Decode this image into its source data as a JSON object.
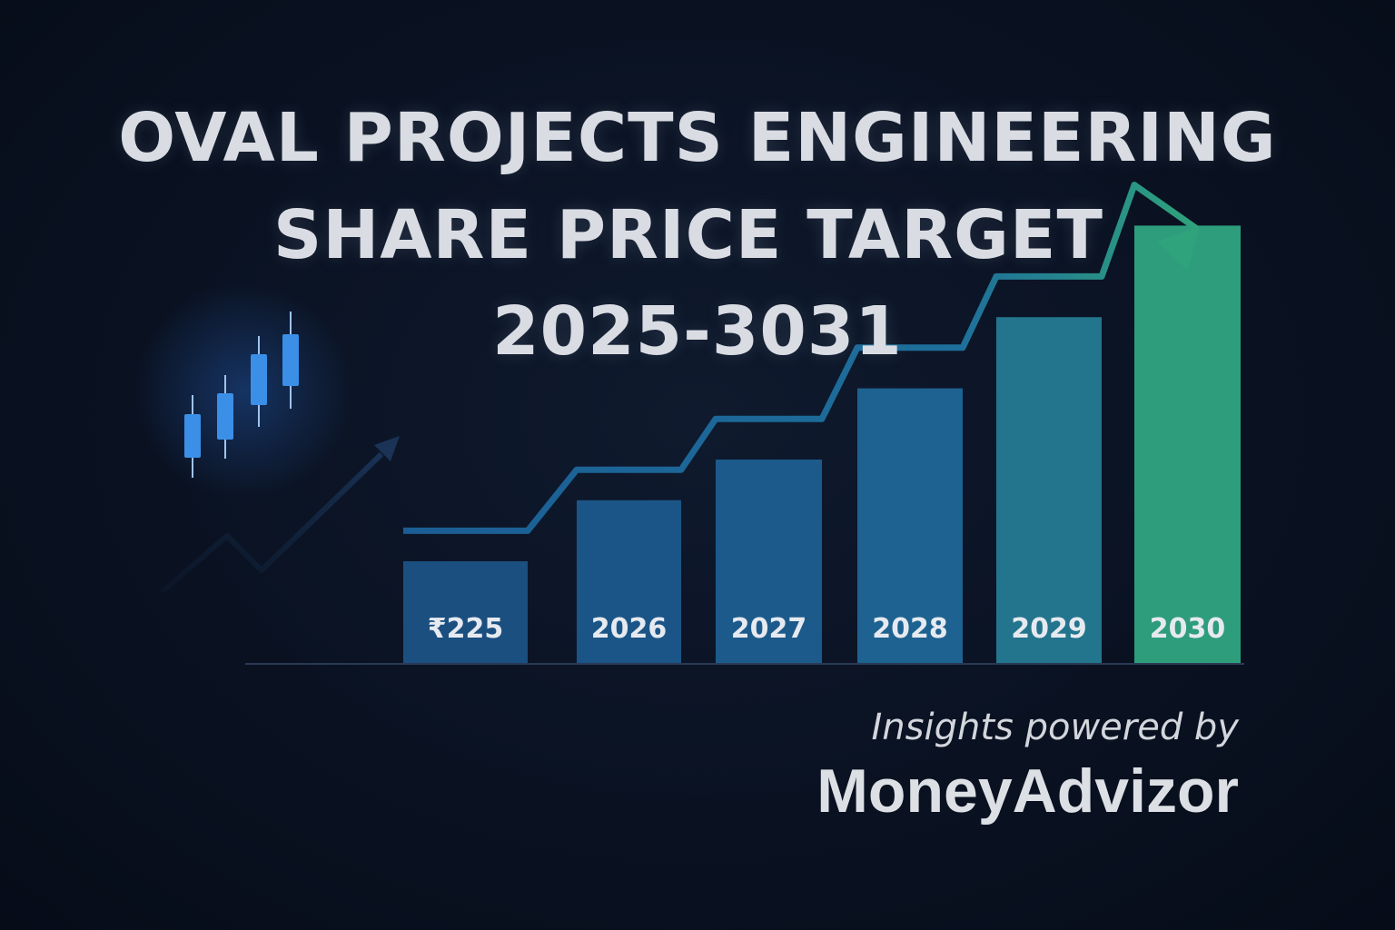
{
  "title": {
    "line1": "OVAL PROJECTS ENGINEERING",
    "line2": "SHARE PRICE TARGET",
    "line3": "2025-3031"
  },
  "credit": {
    "line": "Insights powered by",
    "brand": "MoneyAdvizor"
  },
  "colors": {
    "background": "#0a1222",
    "bar_start": "#1d5a8c",
    "bar_end": "#2fa37b",
    "trend_line": "#1f6ea5",
    "arrow": "#2fa37b",
    "candle": "#3b8fe6"
  },
  "chart_data": {
    "type": "bar",
    "categories": [
      "₹225",
      "2026",
      "2027",
      "2028",
      "2029",
      "2030"
    ],
    "values": [
      1.0,
      1.6,
      2.0,
      2.7,
      3.4,
      4.3
    ],
    "trend_line": [
      1.3,
      1.9,
      2.4,
      3.1,
      3.8,
      4.7
    ],
    "title": "",
    "xlabel": "",
    "ylabel": "",
    "ylim": [
      0,
      5
    ],
    "grid": false,
    "legend": "none"
  },
  "icons": {
    "candles": "candlestick-chart-icon",
    "small_trend": "trend-arrow-icon",
    "big_trend": "growth-arrow-icon"
  }
}
